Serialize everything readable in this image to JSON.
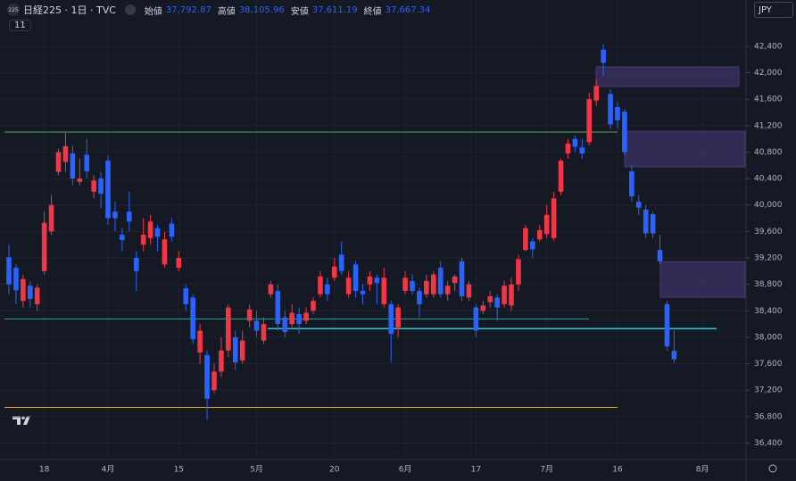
{
  "header": {
    "symbol_badge": "225",
    "title": "日経225 · 1日 · TVC",
    "indicator_count": "11",
    "currency": "JPY",
    "ohlc": [
      {
        "label": "始値",
        "value": "37,792.87"
      },
      {
        "label": "高値",
        "value": "38,105.96"
      },
      {
        "label": "安値",
        "value": "37,611.19"
      },
      {
        "label": "終値",
        "value": "37,667.34"
      }
    ]
  },
  "chart_data": {
    "type": "candlestick",
    "categories": [
      null,
      null,
      null,
      null,
      null,
      "18",
      null,
      null,
      null,
      null,
      null,
      null,
      null,
      null,
      "4月",
      null,
      null,
      null,
      null,
      null,
      null,
      null,
      null,
      null,
      "15",
      null,
      null,
      null,
      null,
      null,
      null,
      null,
      null,
      null,
      null,
      "5月",
      null,
      null,
      null,
      null,
      null,
      null,
      null,
      null,
      null,
      null,
      "20",
      null,
      null,
      null,
      null,
      null,
      null,
      null,
      null,
      null,
      "6月",
      null,
      null,
      null,
      null,
      null,
      null,
      null,
      null,
      null,
      "17",
      null,
      null,
      null,
      null,
      null,
      null,
      null,
      null,
      null,
      "7月",
      null,
      null,
      null,
      null,
      null,
      null,
      null,
      null,
      null,
      "16",
      null,
      null,
      null,
      null,
      null,
      null,
      null,
      null,
      null,
      null,
      null,
      "8月"
    ],
    "ohlc": [
      [
        39210,
        39400,
        38650,
        38800
      ],
      [
        39050,
        39100,
        38500,
        38710
      ],
      [
        38550,
        38950,
        38450,
        38880
      ],
      [
        38780,
        38850,
        38450,
        38580
      ],
      [
        38500,
        38800,
        38400,
        38750
      ],
      [
        39000,
        39900,
        38950,
        39730
      ],
      [
        39600,
        40150,
        39550,
        40000
      ],
      [
        40500,
        40850,
        40450,
        40800
      ],
      [
        40650,
        41090,
        40500,
        40890
      ],
      [
        40780,
        40900,
        40300,
        40400
      ],
      [
        40350,
        40700,
        40300,
        40400
      ],
      [
        40760,
        41000,
        40400,
        40510
      ],
      [
        40200,
        40450,
        40100,
        40370
      ],
      [
        40400,
        40500,
        39950,
        40170
      ],
      [
        40670,
        40750,
        39700,
        39800
      ],
      [
        39900,
        40050,
        39600,
        39800
      ],
      [
        39550,
        39650,
        39300,
        39470
      ],
      [
        39900,
        40200,
        39600,
        39750
      ],
      [
        39200,
        39300,
        38700,
        39000
      ],
      [
        39400,
        39800,
        39300,
        39550
      ],
      [
        39500,
        39850,
        39400,
        39750
      ],
      [
        39650,
        39700,
        39300,
        39520
      ],
      [
        39100,
        39600,
        39050,
        39480
      ],
      [
        39720,
        39800,
        39450,
        39520
      ],
      [
        39050,
        39300,
        39000,
        39200
      ],
      [
        38740,
        38800,
        38400,
        38500
      ],
      [
        38600,
        38650,
        37900,
        37970
      ],
      [
        37770,
        38200,
        37600,
        38100
      ],
      [
        37730,
        37800,
        36750,
        37070
      ],
      [
        37200,
        37600,
        37150,
        37480
      ],
      [
        37480,
        38000,
        37400,
        37800
      ],
      [
        37800,
        38500,
        37700,
        38450
      ],
      [
        38000,
        38100,
        37500,
        37620
      ],
      [
        37650,
        38100,
        37600,
        37950
      ],
      [
        38250,
        38500,
        38150,
        38420
      ],
      [
        38250,
        38400,
        38000,
        38100
      ],
      [
        37950,
        38300,
        37900,
        38200
      ],
      [
        38650,
        38850,
        38600,
        38800
      ],
      [
        38700,
        38800,
        38100,
        38200
      ],
      [
        38300,
        38400,
        38000,
        38080
      ],
      [
        38200,
        38500,
        38150,
        38370
      ],
      [
        38350,
        38450,
        38050,
        38200
      ],
      [
        38250,
        38450,
        38200,
        38370
      ],
      [
        38400,
        38600,
        38350,
        38550
      ],
      [
        38650,
        39000,
        38600,
        38920
      ],
      [
        38800,
        38900,
        38550,
        38650
      ],
      [
        38900,
        39200,
        38850,
        39070
      ],
      [
        39250,
        39450,
        38950,
        39000
      ],
      [
        38650,
        39000,
        38600,
        38900
      ],
      [
        39100,
        39150,
        38600,
        38700
      ],
      [
        38700,
        38800,
        38500,
        38650
      ],
      [
        38800,
        39000,
        38700,
        38920
      ],
      [
        38900,
        38950,
        38500,
        38820
      ],
      [
        38500,
        39050,
        38450,
        38900
      ],
      [
        38500,
        38550,
        37620,
        38050
      ],
      [
        38150,
        38500,
        38000,
        38450
      ],
      [
        38700,
        39000,
        38650,
        38900
      ],
      [
        38850,
        38950,
        38650,
        38700
      ],
      [
        38700,
        38750,
        38300,
        38500
      ],
      [
        38650,
        38950,
        38600,
        38850
      ],
      [
        38650,
        39000,
        38600,
        38950
      ],
      [
        39050,
        39150,
        38600,
        38650
      ],
      [
        38650,
        38850,
        38550,
        38780
      ],
      [
        38820,
        38950,
        38700,
        38920
      ],
      [
        39150,
        39200,
        38550,
        38620
      ],
      [
        38600,
        38850,
        38550,
        38800
      ],
      [
        38450,
        38500,
        38000,
        38100
      ],
      [
        38400,
        38550,
        38350,
        38480
      ],
      [
        38530,
        38700,
        38450,
        38620
      ],
      [
        38600,
        38650,
        38250,
        38450
      ],
      [
        38500,
        38850,
        38450,
        38780
      ],
      [
        38480,
        38900,
        38400,
        38800
      ],
      [
        38800,
        39250,
        38700,
        39180
      ],
      [
        39320,
        39700,
        39300,
        39650
      ],
      [
        39450,
        39500,
        39200,
        39330
      ],
      [
        39480,
        39700,
        39450,
        39620
      ],
      [
        39560,
        40000,
        39500,
        39850
      ],
      [
        39500,
        40200,
        39450,
        40100
      ],
      [
        40200,
        40700,
        40150,
        40670
      ],
      [
        40780,
        41000,
        40700,
        40930
      ],
      [
        41000,
        41050,
        40800,
        40880
      ],
      [
        40870,
        41000,
        40700,
        40780
      ],
      [
        40950,
        41700,
        40900,
        41600
      ],
      [
        41580,
        41900,
        41500,
        41800
      ],
      [
        42350,
        42430,
        41950,
        42150
      ],
      [
        41680,
        41750,
        41150,
        41220
      ],
      [
        41480,
        41550,
        41150,
        41280
      ],
      [
        41410,
        41450,
        40750,
        40800
      ],
      [
        40510,
        40600,
        40050,
        40130
      ],
      [
        40050,
        40150,
        39850,
        39960
      ],
      [
        39930,
        40000,
        39500,
        39570
      ],
      [
        39860,
        39900,
        39500,
        39570
      ],
      [
        39320,
        39550,
        39100,
        39150
      ],
      [
        38500,
        38550,
        37800,
        37860
      ],
      [
        37792.87,
        38105.96,
        37611.19,
        37667.34
      ]
    ],
    "up_color": "#f23645",
    "down_color": "#2962ff",
    "ylim": [
      36150,
      43100
    ],
    "yticks": [
      {
        "value": 36400,
        "label": "36,400"
      },
      {
        "value": 36800,
        "label": "36,800"
      },
      {
        "value": 37200,
        "label": "37,200"
      },
      {
        "value": 37600,
        "label": "37,600"
      },
      {
        "value": 38000,
        "label": "38,000"
      },
      {
        "value": 38400,
        "label": "38,400"
      },
      {
        "value": 38800,
        "label": "38,800"
      },
      {
        "value": 39200,
        "label": "39,200"
      },
      {
        "value": 39600,
        "label": "39,600"
      },
      {
        "value": 40000,
        "label": "40,000"
      },
      {
        "value": 40400,
        "label": "40,400"
      },
      {
        "value": 40800,
        "label": "40,800"
      },
      {
        "value": 41200,
        "label": "41,200"
      },
      {
        "value": 41600,
        "label": "41,600"
      },
      {
        "value": 42000,
        "label": "42,000"
      },
      {
        "value": 42400,
        "label": "42,400"
      }
    ],
    "grid": true,
    "hlines": [
      {
        "value": 41103,
        "color": "#4caf50"
      },
      {
        "value": 38278,
        "color": "#26a69a"
      },
      {
        "value": 38130,
        "color": "#26c6da"
      },
      {
        "value": 36940,
        "color": "#f5a623"
      }
    ],
    "zones": [
      {
        "top": 42089,
        "bottom": 41792,
        "color": "#4a3a7a"
      },
      {
        "top": 41116,
        "bottom": 40576,
        "color": "#4a3a7a"
      },
      {
        "top": 39143,
        "bottom": 38603,
        "color": "#4a3a7a"
      }
    ]
  }
}
